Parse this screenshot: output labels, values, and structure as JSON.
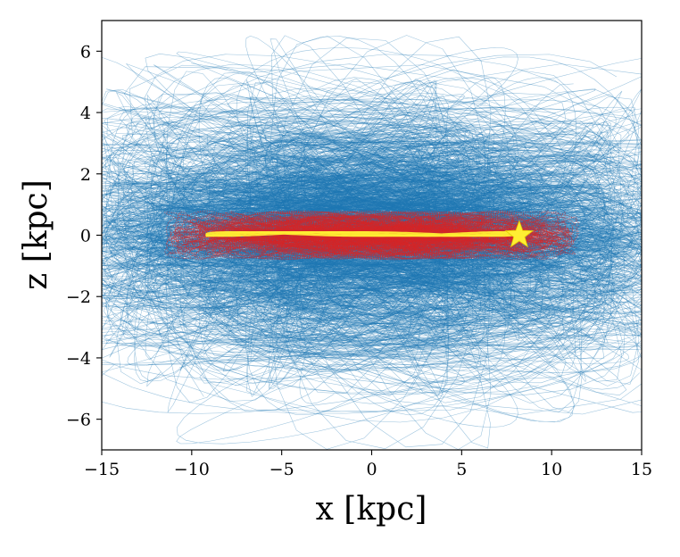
{
  "chart_data": {
    "type": "line",
    "xlabel": "x [kpc]",
    "ylabel": "z [kpc]",
    "xlim": [
      -15,
      15
    ],
    "ylim": [
      -7,
      7
    ],
    "xticks": [
      -15,
      -10,
      -5,
      0,
      5,
      10,
      15
    ],
    "xtick_labels": [
      "−15",
      "−10",
      "−5",
      "0",
      "5",
      "10",
      "15"
    ],
    "yticks": [
      -6,
      -4,
      -2,
      0,
      2,
      4,
      6
    ],
    "ytick_labels": [
      "−6",
      "−4",
      "−2",
      "0",
      "2",
      "4",
      "6"
    ],
    "grid": false,
    "series": [
      {
        "kind": "halo orbits",
        "color": "#1f77b4",
        "x_extent": [
          -15,
          15
        ],
        "z_extent": [
          -7,
          7
        ],
        "z_scale": 2.4
      },
      {
        "kind": "disk orbits",
        "color": "#d62728",
        "x_extent": [
          -11.8,
          11.7
        ],
        "z_extent": [
          -0.85,
          0.85
        ]
      },
      {
        "kind": "sun orbit",
        "color": "#ffee33",
        "x_extent": [
          -9.2,
          8.2
        ],
        "z_extent": [
          -0.1,
          0.15
        ]
      }
    ],
    "marker": {
      "shape": "star",
      "x": 8.2,
      "z": 0.0,
      "color": "#ffee33"
    }
  }
}
